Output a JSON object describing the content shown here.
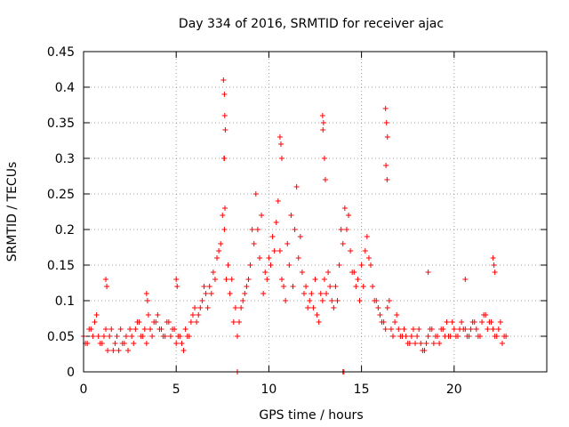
{
  "chart_data": {
    "type": "scatter",
    "title": "Day 334 of 2016, SRMTID for receiver ajac",
    "xlabel": "GPS time / hours",
    "ylabel": "SRMTID / TECUs",
    "xlim": [
      0,
      25
    ],
    "ylim": [
      0,
      0.45
    ],
    "xticks": [
      0,
      5,
      10,
      15,
      20
    ],
    "yticks": [
      0,
      0.05,
      0.1,
      0.15,
      0.2,
      0.25,
      0.3,
      0.35,
      0.4,
      0.45
    ],
    "ytick_labels": [
      "0",
      "0.05",
      "0.1",
      "0.15",
      "0.2",
      "0.25",
      "0.3",
      "0.35",
      "0.4",
      "0.45"
    ],
    "grid": true,
    "marker": "+",
    "color": "#ff0000",
    "series": [
      {
        "name": "SRMTID",
        "x": [
          0.0,
          0.2,
          0.4,
          0.6,
          0.8,
          1.0,
          1.2,
          1.4,
          1.6,
          1.8,
          2.0,
          2.2,
          2.4,
          2.6,
          2.8,
          3.0,
          3.2,
          3.4,
          3.6,
          3.8,
          4.0,
          4.2,
          4.4,
          4.6,
          4.8,
          5.0,
          5.2,
          5.4,
          5.6,
          5.8,
          6.0,
          6.2,
          6.4,
          6.6,
          6.8,
          7.0,
          7.2,
          7.4,
          7.6,
          7.8,
          8.0,
          8.2,
          8.4,
          8.6,
          8.8,
          9.0,
          9.2,
          9.4,
          9.6,
          9.8,
          10.0,
          10.2,
          10.4,
          10.6,
          10.8,
          11.0,
          11.2,
          11.4,
          11.6,
          11.8,
          12.0,
          12.2,
          12.4,
          12.6,
          12.8,
          13.0,
          13.2,
          13.4,
          13.6,
          13.8,
          14.0,
          14.2,
          14.4,
          14.6,
          14.8,
          15.0,
          15.2,
          15.4,
          15.6,
          15.8,
          16.0,
          16.2,
          16.4,
          16.6,
          16.8,
          17.0,
          17.2,
          17.4,
          17.6,
          17.8,
          18.0,
          18.2,
          18.4,
          18.6,
          18.8,
          19.0,
          19.2,
          19.4,
          19.6,
          19.8,
          20.0,
          20.2,
          20.4,
          20.6,
          20.8,
          21.0,
          21.2,
          21.4,
          21.6,
          21.8,
          22.0,
          22.2,
          22.4,
          22.6,
          22.8,
          0.1,
          0.3,
          0.5,
          0.7,
          0.9,
          1.1,
          1.3,
          1.5,
          1.7,
          1.9,
          2.1,
          2.3,
          2.5,
          2.7,
          2.9,
          3.1,
          3.3,
          3.5,
          3.7,
          3.9,
          4.1,
          4.3,
          4.5,
          4.7,
          4.9,
          5.1,
          5.3,
          5.5,
          5.7,
          5.9,
          6.1,
          6.3,
          6.5,
          6.7,
          6.9,
          7.1,
          7.3,
          7.5,
          7.7,
          7.9,
          8.1,
          8.3,
          8.5,
          8.7,
          8.9,
          9.1,
          9.3,
          9.5,
          9.7,
          9.9,
          10.1,
          10.3,
          10.5,
          10.7,
          10.9,
          11.1,
          11.3,
          11.5,
          11.7,
          11.9,
          12.1,
          12.3,
          12.5,
          12.7,
          12.9,
          13.1,
          13.3,
          13.5,
          13.7,
          13.9,
          14.1,
          14.3,
          14.5,
          14.7,
          14.9,
          15.1,
          15.3,
          15.5,
          15.7,
          15.9,
          16.1,
          16.3,
          16.5,
          16.7,
          16.9,
          17.1,
          17.3,
          17.5,
          17.7,
          17.9,
          18.1,
          18.3,
          18.5,
          18.7,
          18.9,
          19.1,
          19.3,
          19.5,
          19.7,
          19.9,
          20.1,
          20.3,
          20.5,
          20.7,
          20.9,
          21.1,
          21.3,
          21.5,
          21.7,
          21.9,
          22.1,
          22.3,
          22.5,
          22.7,
          1.2,
          1.25,
          3.4,
          3.45,
          5.0,
          5.05,
          7.55,
          7.6,
          7.62,
          7.65,
          7.58,
          7.6,
          7.63,
          10.6,
          10.65,
          10.7,
          12.9,
          12.95,
          13.0,
          13.05,
          12.92,
          16.3,
          16.35,
          16.4,
          16.32,
          16.38,
          8.3,
          14.0,
          14.05,
          22.1,
          22.15,
          22.2,
          18.6,
          20.6
        ],
        "y": [
          0.05,
          0.04,
          0.06,
          0.07,
          0.05,
          0.04,
          0.06,
          0.05,
          0.03,
          0.05,
          0.06,
          0.04,
          0.03,
          0.05,
          0.06,
          0.07,
          0.05,
          0.04,
          0.06,
          0.07,
          0.08,
          0.06,
          0.05,
          0.07,
          0.06,
          0.04,
          0.05,
          0.03,
          0.05,
          0.07,
          0.09,
          0.08,
          0.1,
          0.11,
          0.12,
          0.14,
          0.16,
          0.18,
          0.2,
          0.15,
          0.13,
          0.09,
          0.07,
          0.1,
          0.12,
          0.15,
          0.18,
          0.2,
          0.22,
          0.14,
          0.16,
          0.19,
          0.21,
          0.17,
          0.12,
          0.18,
          0.22,
          0.2,
          0.16,
          0.14,
          0.12,
          0.1,
          0.09,
          0.08,
          0.11,
          0.13,
          0.14,
          0.1,
          0.12,
          0.15,
          0.18,
          0.2,
          0.17,
          0.14,
          0.13,
          0.15,
          0.17,
          0.16,
          0.12,
          0.1,
          0.08,
          0.07,
          0.09,
          0.06,
          0.07,
          0.06,
          0.05,
          0.05,
          0.04,
          0.06,
          0.05,
          0.04,
          0.03,
          0.05,
          0.06,
          0.05,
          0.04,
          0.06,
          0.07,
          0.05,
          0.06,
          0.05,
          0.07,
          0.06,
          0.05,
          0.07,
          0.06,
          0.05,
          0.08,
          0.06,
          0.07,
          0.05,
          0.06,
          0.04,
          0.05,
          0.04,
          0.06,
          0.05,
          0.08,
          0.04,
          0.05,
          0.03,
          0.06,
          0.04,
          0.03,
          0.04,
          0.05,
          0.06,
          0.04,
          0.07,
          0.05,
          0.06,
          0.08,
          0.05,
          0.07,
          0.06,
          0.05,
          0.07,
          0.05,
          0.06,
          0.05,
          0.04,
          0.06,
          0.05,
          0.08,
          0.07,
          0.09,
          0.12,
          0.09,
          0.11,
          0.13,
          0.17,
          0.22,
          0.13,
          0.11,
          0.07,
          0.05,
          0.09,
          0.11,
          0.13,
          0.2,
          0.25,
          0.16,
          0.11,
          0.13,
          0.15,
          0.17,
          0.24,
          0.13,
          0.1,
          0.15,
          0.12,
          0.26,
          0.19,
          0.11,
          0.09,
          0.11,
          0.13,
          0.07,
          0.1,
          0.11,
          0.12,
          0.09,
          0.1,
          0.2,
          0.23,
          0.22,
          0.14,
          0.12,
          0.1,
          0.12,
          0.19,
          0.15,
          0.1,
          0.09,
          0.07,
          0.06,
          0.1,
          0.05,
          0.08,
          0.05,
          0.06,
          0.04,
          0.05,
          0.04,
          0.06,
          0.03,
          0.04,
          0.06,
          0.04,
          0.05,
          0.06,
          0.05,
          0.05,
          0.07,
          0.05,
          0.06,
          0.06,
          0.05,
          0.06,
          0.07,
          0.05,
          0.07,
          0.08,
          0.07,
          0.06,
          0.05,
          0.07,
          0.05,
          0.13,
          0.12,
          0.11,
          0.1,
          0.13,
          0.12,
          0.41,
          0.39,
          0.36,
          0.34,
          0.3,
          0.3,
          0.23,
          0.33,
          0.32,
          0.3,
          0.36,
          0.35,
          0.3,
          0.27,
          0.34,
          0.37,
          0.35,
          0.33,
          0.29,
          0.27,
          0.0,
          0.0,
          0.0,
          0.16,
          0.15,
          0.14,
          0.14,
          0.13
        ]
      }
    ]
  }
}
